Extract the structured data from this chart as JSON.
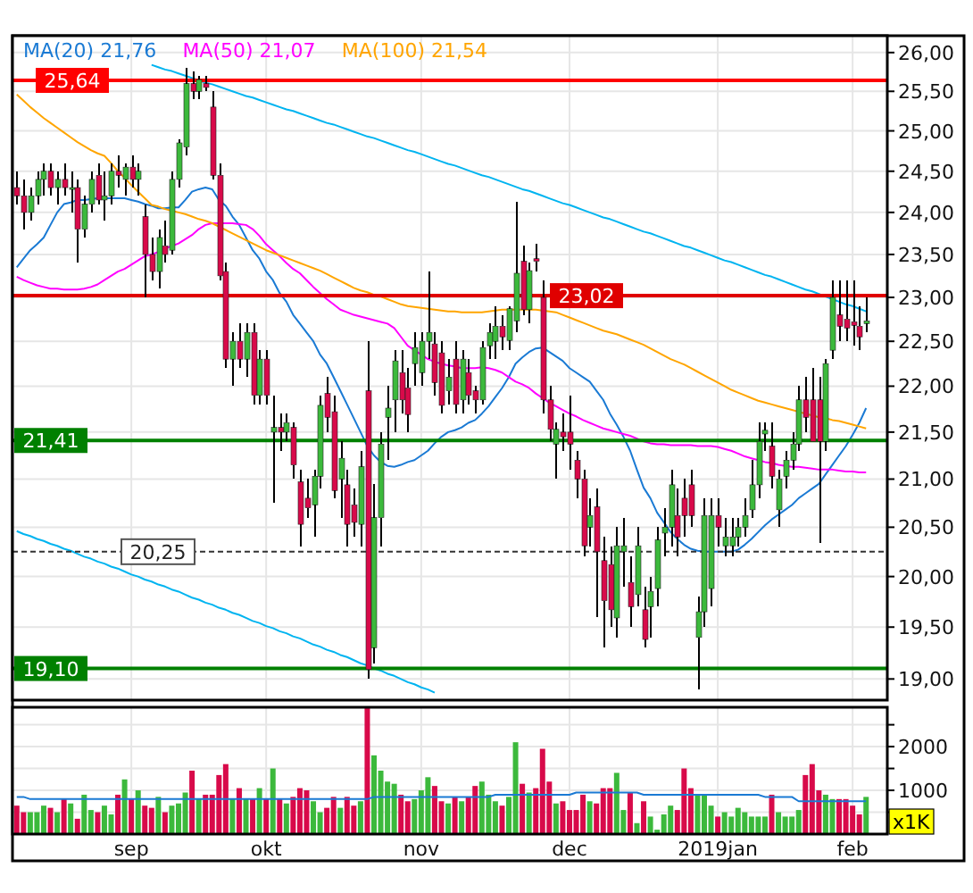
{
  "chart_data": [
    {
      "type": "candlestick",
      "log": true,
      "grid": true,
      "legend": "top left",
      "tick_labels": "y",
      "ylim": [
        18.8,
        26.22
      ],
      "yticks": [
        {
          "value": 19,
          "label": "19,00"
        },
        {
          "value": 19.5,
          "label": "19,50"
        },
        {
          "value": 20,
          "label": "20,00"
        },
        {
          "value": 20.5,
          "label": "20,50"
        },
        {
          "value": 21,
          "label": "21,00"
        },
        {
          "value": 21.5,
          "label": "21,50"
        },
        {
          "value": 22,
          "label": "22,00"
        },
        {
          "value": 22.5,
          "label": "22,50"
        },
        {
          "value": 23,
          "label": "23,00"
        },
        {
          "value": 23.5,
          "label": "23,50"
        },
        {
          "value": 24,
          "label": "24,00"
        },
        {
          "value": 24.5,
          "label": "24,50"
        },
        {
          "value": 25,
          "label": "25,00"
        },
        {
          "value": 25.5,
          "label": "25,50"
        },
        {
          "value": 26,
          "label": "26,00"
        }
      ],
      "categories": [
        null,
        null,
        null,
        null,
        null,
        null,
        null,
        null,
        null,
        null,
        null,
        null,
        null,
        null,
        null,
        null,
        null,
        null,
        null,
        null,
        null,
        null,
        null,
        null,
        null,
        null,
        null,
        null,
        null,
        null,
        null,
        null,
        null,
        null,
        null,
        null,
        null,
        null,
        null,
        null,
        null,
        null,
        null,
        null,
        null,
        null,
        null,
        null,
        null,
        null,
        null,
        null,
        null,
        null,
        null,
        null,
        null,
        null,
        null,
        null,
        null,
        null,
        null,
        null,
        null,
        null,
        null,
        null,
        null,
        null,
        null,
        null,
        null,
        null,
        null,
        null,
        null,
        null,
        null,
        null,
        null,
        null,
        null,
        null,
        null,
        null,
        null,
        null,
        null,
        null,
        null,
        null,
        null,
        null,
        null,
        null,
        null,
        null,
        null,
        null,
        null,
        null,
        null,
        null,
        null,
        null,
        null,
        null,
        null,
        null,
        null,
        null,
        null,
        null,
        null,
        null,
        null,
        null,
        null,
        null,
        null,
        null,
        null,
        null,
        null,
        null,
        null
      ],
      "ohlc": [
        [
          24.3,
          24.5,
          24.1,
          24.2
        ],
        [
          24.2,
          24.4,
          23.8,
          24.0
        ],
        [
          24.0,
          24.3,
          23.9,
          24.2
        ],
        [
          24.2,
          24.5,
          24.1,
          24.4
        ],
        [
          24.4,
          24.6,
          24.2,
          24.5
        ],
        [
          24.5,
          24.6,
          24.2,
          24.3
        ],
        [
          24.3,
          24.5,
          24.1,
          24.4
        ],
        [
          24.4,
          24.6,
          24.2,
          24.3
        ],
        [
          24.3,
          24.5,
          24.0,
          24.3
        ],
        [
          24.3,
          24.4,
          23.4,
          23.8
        ],
        [
          23.8,
          24.2,
          23.7,
          24.1
        ],
        [
          24.1,
          24.5,
          24.0,
          24.4
        ],
        [
          24.45,
          24.6,
          24.1,
          24.15
        ],
        [
          24.15,
          24.5,
          23.9,
          24.2
        ],
        [
          24.2,
          24.6,
          24.1,
          24.5
        ],
        [
          24.5,
          24.7,
          24.3,
          24.45
        ],
        [
          24.4,
          24.6,
          24.2,
          24.55
        ],
        [
          24.55,
          24.7,
          24.3,
          24.4
        ],
        [
          24.4,
          24.6,
          24.2,
          24.5
        ],
        [
          23.95,
          24.1,
          23.0,
          23.5
        ],
        [
          23.5,
          23.7,
          23.2,
          23.3
        ],
        [
          23.3,
          23.8,
          23.1,
          23.7
        ],
        [
          23.6,
          23.9,
          23.4,
          23.5
        ],
        [
          23.55,
          24.5,
          23.5,
          24.4
        ],
        [
          24.4,
          24.9,
          24.3,
          24.85
        ],
        [
          24.8,
          25.8,
          24.7,
          25.6
        ],
        [
          25.6,
          25.75,
          25.4,
          25.5
        ],
        [
          25.5,
          25.7,
          25.4,
          25.65
        ],
        [
          25.6,
          25.7,
          25.5,
          25.55
        ],
        [
          25.3,
          25.5,
          24.4,
          24.45
        ],
        [
          24.45,
          24.6,
          23.2,
          23.25
        ],
        [
          23.3,
          23.4,
          22.2,
          22.3
        ],
        [
          22.3,
          22.6,
          22.0,
          22.5
        ],
        [
          22.5,
          22.7,
          22.2,
          22.3
        ],
        [
          22.3,
          22.7,
          22.1,
          22.6
        ],
        [
          22.6,
          22.7,
          21.8,
          21.9
        ],
        [
          21.9,
          22.4,
          21.8,
          22.3
        ],
        [
          22.3,
          22.4,
          21.8,
          21.9
        ],
        [
          21.5,
          21.9,
          20.75,
          21.55
        ],
        [
          21.55,
          21.7,
          21.3,
          21.5
        ],
        [
          21.5,
          21.7,
          21.4,
          21.6
        ],
        [
          21.55,
          21.6,
          21.0,
          21.15
        ],
        [
          20.97,
          21.1,
          20.3,
          20.53
        ],
        [
          20.8,
          21.0,
          20.6,
          20.7
        ],
        [
          20.73,
          21.1,
          20.4,
          21.03
        ],
        [
          21.03,
          21.9,
          20.9,
          21.79
        ],
        [
          21.92,
          22.1,
          21.5,
          21.66
        ],
        [
          21.72,
          21.9,
          20.8,
          20.88
        ],
        [
          21.0,
          21.4,
          20.6,
          21.22
        ],
        [
          20.94,
          21.1,
          20.3,
          20.53
        ],
        [
          20.73,
          20.9,
          20.4,
          20.55
        ],
        [
          20.53,
          21.3,
          20.3,
          21.13
        ],
        [
          21.95,
          22.5,
          19.0,
          19.09
        ],
        [
          19.3,
          20.95,
          19.15,
          20.6
        ],
        [
          20.6,
          21.5,
          20.3,
          21.37
        ],
        [
          21.66,
          22.0,
          21.2,
          21.76
        ],
        [
          21.85,
          22.4,
          21.5,
          22.28
        ],
        [
          22.15,
          22.4,
          21.7,
          21.85
        ],
        [
          21.98,
          22.2,
          21.5,
          21.69
        ],
        [
          22.25,
          22.6,
          22.0,
          22.43
        ],
        [
          22.15,
          22.6,
          22.0,
          22.5
        ],
        [
          22.5,
          23.3,
          22.3,
          22.6
        ],
        [
          22.47,
          22.6,
          21.9,
          22.04
        ],
        [
          22.37,
          22.5,
          21.7,
          21.79
        ],
        [
          21.95,
          22.3,
          21.8,
          22.1
        ],
        [
          22.3,
          22.5,
          21.7,
          21.8
        ],
        [
          21.85,
          22.4,
          21.7,
          22.3
        ],
        [
          22.15,
          22.3,
          21.8,
          21.9
        ],
        [
          21.95,
          22.0,
          21.7,
          21.85
        ],
        [
          21.85,
          22.5,
          21.8,
          22.43
        ],
        [
          22.45,
          22.7,
          22.3,
          22.6
        ],
        [
          22.5,
          22.9,
          22.3,
          22.67
        ],
        [
          22.67,
          22.8,
          22.4,
          22.55
        ],
        [
          22.51,
          22.9,
          22.4,
          22.87
        ],
        [
          22.73,
          24.13,
          22.6,
          23.28
        ],
        [
          23.42,
          23.6,
          22.8,
          22.86
        ],
        [
          22.86,
          23.4,
          22.7,
          23.31
        ],
        [
          23.45,
          23.63,
          23.3,
          23.42
        ],
        [
          23.0,
          23.2,
          21.7,
          21.85
        ],
        [
          21.85,
          22.0,
          21.4,
          21.53
        ],
        [
          21.37,
          21.6,
          21.0,
          21.53
        ],
        [
          21.5,
          21.7,
          21.3,
          21.45
        ],
        [
          21.5,
          21.9,
          21.1,
          21.37
        ],
        [
          21.2,
          21.3,
          20.8,
          21.0
        ],
        [
          21.0,
          21.1,
          20.2,
          20.31
        ],
        [
          20.5,
          20.8,
          20.3,
          20.62
        ],
        [
          20.71,
          20.9,
          19.6,
          20.25
        ],
        [
          20.16,
          20.4,
          19.3,
          19.76
        ],
        [
          20.12,
          20.3,
          19.5,
          19.67
        ],
        [
          19.59,
          20.5,
          19.4,
          20.31
        ],
        [
          20.25,
          20.6,
          19.9,
          20.31
        ],
        [
          19.94,
          20.2,
          19.5,
          19.7
        ],
        [
          19.82,
          20.5,
          19.7,
          20.31
        ],
        [
          19.67,
          19.9,
          19.3,
          19.38
        ],
        [
          19.7,
          20.0,
          19.4,
          19.85
        ],
        [
          19.88,
          20.5,
          19.7,
          20.37
        ],
        [
          20.44,
          20.7,
          20.2,
          20.5
        ],
        [
          20.5,
          21.1,
          20.3,
          20.94
        ],
        [
          20.62,
          20.9,
          20.2,
          20.4
        ],
        [
          20.8,
          21.0,
          20.4,
          20.62
        ],
        [
          20.94,
          21.1,
          20.5,
          20.62
        ],
        [
          19.4,
          19.8,
          18.9,
          19.65
        ],
        [
          19.65,
          20.8,
          19.5,
          20.62
        ],
        [
          19.88,
          20.8,
          19.7,
          20.62
        ],
        [
          20.62,
          20.8,
          20.3,
          20.5
        ],
        [
          20.31,
          20.6,
          20.2,
          20.4
        ],
        [
          20.31,
          20.6,
          20.2,
          20.4
        ],
        [
          20.4,
          20.6,
          20.3,
          20.5
        ],
        [
          20.5,
          20.8,
          20.4,
          20.62
        ],
        [
          20.68,
          21.2,
          20.6,
          20.94
        ],
        [
          20.94,
          21.6,
          20.8,
          21.4
        ],
        [
          21.48,
          21.6,
          21.3,
          21.52
        ],
        [
          21.35,
          21.6,
          20.9,
          21.03
        ],
        [
          20.68,
          21.1,
          20.5,
          21.0
        ],
        [
          21.03,
          21.3,
          20.9,
          21.2
        ],
        [
          21.2,
          21.5,
          21.1,
          21.37
        ],
        [
          21.37,
          22.0,
          21.3,
          21.85
        ],
        [
          21.85,
          22.1,
          21.5,
          21.66
        ],
        [
          21.85,
          22.2,
          21.4,
          21.4
        ],
        [
          21.85,
          22.1,
          20.34,
          21.4
        ],
        [
          21.4,
          22.3,
          21.3,
          22.25
        ],
        [
          22.4,
          23.2,
          22.3,
          23.0
        ],
        [
          22.8,
          23.2,
          22.5,
          22.67
        ],
        [
          22.75,
          23.2,
          22.5,
          22.65
        ],
        [
          22.72,
          23.2,
          22.45,
          22.68
        ],
        [
          22.67,
          22.9,
          22.4,
          22.55
        ],
        [
          22.7,
          23.0,
          22.6,
          22.73
        ]
      ],
      "colors": [
        "#d80a4a",
        "#d80a4a",
        "#3cb93c",
        "#3cb93c",
        "#3cb93c",
        "#d80a4a",
        "#3cb93c",
        "#d80a4a",
        "#3cb93c",
        "#d80a4a",
        "#3cb93c",
        "#3cb93c",
        "#d80a4a",
        "#3cb93c",
        "#3cb93c",
        "#d80a4a",
        "#3cb93c",
        "#d80a4a",
        "#3cb93c",
        "#d80a4a",
        "#d80a4a",
        "#3cb93c",
        "#d80a4a",
        "#3cb93c",
        "#3cb93c",
        "#3cb93c",
        "#d80a4a",
        "#3cb93c",
        "#d80a4a",
        "#d80a4a",
        "#d80a4a",
        "#d80a4a",
        "#3cb93c",
        "#d80a4a",
        "#3cb93c",
        "#d80a4a",
        "#3cb93c",
        "#d80a4a",
        "#3cb93c",
        "#d80a4a",
        "#3cb93c",
        "#d80a4a",
        "#d80a4a",
        "#d80a4a",
        "#3cb93c",
        "#3cb93c",
        "#d80a4a",
        "#d80a4a",
        "#3cb93c",
        "#d80a4a",
        "#d80a4a",
        "#3cb93c",
        "#d80a4a",
        "#3cb93c",
        "#3cb93c",
        "#3cb93c",
        "#3cb93c",
        "#d80a4a",
        "#d80a4a",
        "#3cb93c",
        "#3cb93c",
        "#3cb93c",
        "#d80a4a",
        "#d80a4a",
        "#3cb93c",
        "#d80a4a",
        "#3cb93c",
        "#d80a4a",
        "#d80a4a",
        "#3cb93c",
        "#3cb93c",
        "#3cb93c",
        "#d80a4a",
        "#3cb93c",
        "#3cb93c",
        "#d80a4a",
        "#3cb93c",
        "#d80a4a",
        "#d80a4a",
        "#d80a4a",
        "#3cb93c",
        "#d80a4a",
        "#d80a4a",
        "#d80a4a",
        "#d80a4a",
        "#3cb93c",
        "#d80a4a",
        "#d80a4a",
        "#d80a4a",
        "#3cb93c",
        "#3cb93c",
        "#d80a4a",
        "#3cb93c",
        "#d80a4a",
        "#3cb93c",
        "#3cb93c",
        "#3cb93c",
        "#3cb93c",
        "#d80a4a",
        "#d80a4a",
        "#d80a4a",
        "#3cb93c",
        "#3cb93c",
        "#3cb93c",
        "#d80a4a",
        "#3cb93c",
        "#3cb93c",
        "#3cb93c",
        "#3cb93c",
        "#3cb93c",
        "#3cb93c",
        "#3cb93c",
        "#d80a4a",
        "#3cb93c",
        "#3cb93c",
        "#3cb93c",
        "#3cb93c",
        "#d80a4a",
        "#d80a4a",
        "#d80a4a",
        "#3cb93c",
        "#3cb93c",
        "#d80a4a",
        "#d80a4a",
        "#d80a4a",
        "#d80a4a",
        "#3cb93c"
      ],
      "series": [
        {
          "type": "line",
          "name": "MA(20) 21,76",
          "color": "#1a7ad4",
          "values": [
            23.35,
            23.45,
            23.55,
            23.62,
            23.7,
            23.85,
            24.0,
            24.1,
            24.12,
            24.15,
            24.15,
            24.16,
            24.17,
            24.17,
            24.17,
            24.17,
            24.17,
            24.15,
            24.13,
            24.1,
            24.08,
            24.05,
            24.05,
            24.06,
            24.06,
            24.15,
            24.25,
            24.28,
            24.3,
            24.28,
            24.15,
            24.08,
            23.95,
            23.85,
            23.7,
            23.55,
            23.45,
            23.3,
            23.2,
            23.05,
            22.95,
            22.8,
            22.7,
            22.6,
            22.5,
            22.35,
            22.25,
            22.1,
            21.95,
            21.8,
            21.65,
            21.5,
            21.35,
            21.25,
            21.18,
            21.14,
            21.13,
            21.15,
            21.18,
            21.2,
            21.25,
            21.3,
            21.38,
            21.45,
            21.5,
            21.52,
            21.55,
            21.6,
            21.63,
            21.7,
            21.78,
            21.88,
            21.98,
            22.1,
            22.25,
            22.32,
            22.38,
            22.42,
            22.43,
            22.38,
            22.33,
            22.28,
            22.2,
            22.15,
            22.1,
            22.05,
            21.95,
            21.85,
            21.7,
            21.58,
            21.45,
            21.3,
            21.1,
            20.91,
            20.8,
            20.65,
            20.55,
            20.45,
            20.38,
            20.32,
            20.28,
            20.26,
            20.25,
            20.25,
            20.25,
            20.25,
            20.25,
            20.27,
            20.32,
            20.38,
            20.45,
            20.52,
            20.58,
            20.63,
            20.68,
            20.73,
            20.8,
            20.85,
            20.9,
            20.95,
            21.05,
            21.15,
            21.25,
            21.35,
            21.47,
            21.6,
            21.76
          ]
        },
        {
          "type": "line",
          "name": "MA(50) 21,07",
          "color": "#ff00ff",
          "values": [
            23.24,
            23.2,
            23.17,
            23.14,
            23.12,
            23.1,
            23.1,
            23.09,
            23.09,
            23.09,
            23.1,
            23.12,
            23.15,
            23.2,
            23.25,
            23.3,
            23.33,
            23.38,
            23.43,
            23.48,
            23.5,
            23.53,
            23.57,
            23.6,
            23.63,
            23.68,
            23.73,
            23.8,
            23.85,
            23.87,
            23.87,
            23.87,
            23.87,
            23.86,
            23.85,
            23.8,
            23.72,
            23.62,
            23.55,
            23.48,
            23.4,
            23.33,
            23.28,
            23.2,
            23.12,
            23.05,
            22.98,
            22.92,
            22.86,
            22.83,
            22.8,
            22.78,
            22.76,
            22.74,
            22.72,
            22.7,
            22.65,
            22.55,
            22.45,
            22.4,
            22.35,
            22.3,
            22.27,
            22.25,
            22.23,
            22.22,
            22.2,
            22.2,
            22.2,
            22.21,
            22.2,
            22.18,
            22.15,
            22.1,
            22.05,
            22.02,
            21.98,
            21.92,
            21.87,
            21.82,
            21.78,
            21.74,
            21.7,
            21.67,
            21.63,
            21.6,
            21.57,
            21.54,
            21.52,
            21.5,
            21.48,
            21.46,
            21.43,
            21.4,
            21.38,
            21.37,
            21.37,
            21.36,
            21.36,
            21.36,
            21.36,
            21.35,
            21.35,
            21.35,
            21.34,
            21.32,
            21.3,
            21.27,
            21.24,
            21.22,
            21.2,
            21.18,
            21.17,
            21.15,
            21.14,
            21.13,
            21.13,
            21.12,
            21.11,
            21.1,
            21.1,
            21.1,
            21.09,
            21.08,
            21.08,
            21.07,
            21.07
          ]
        },
        {
          "type": "line",
          "name": "MA(100) 21,54",
          "color": "#ffa500",
          "values": [
            25.46,
            25.38,
            25.3,
            25.23,
            25.16,
            25.1,
            25.04,
            24.98,
            24.92,
            24.86,
            24.81,
            24.76,
            24.72,
            24.69,
            24.6,
            24.5,
            24.42,
            24.33,
            24.25,
            24.17,
            24.09,
            24.07,
            24.04,
            24.02,
            24.0,
            23.98,
            23.95,
            23.92,
            23.9,
            23.87,
            23.83,
            23.79,
            23.75,
            23.71,
            23.67,
            23.63,
            23.59,
            23.55,
            23.52,
            23.49,
            23.46,
            23.43,
            23.4,
            23.37,
            23.34,
            23.31,
            23.27,
            23.23,
            23.19,
            23.15,
            23.11,
            23.08,
            23.06,
            23.03,
            23.01,
            22.98,
            22.95,
            22.92,
            22.9,
            22.89,
            22.88,
            22.87,
            22.86,
            22.85,
            22.84,
            22.84,
            22.83,
            22.83,
            22.83,
            22.83,
            22.84,
            22.85,
            22.86,
            22.86,
            22.86,
            22.86,
            22.86,
            22.86,
            22.85,
            22.84,
            22.83,
            22.8,
            22.77,
            22.74,
            22.71,
            22.68,
            22.65,
            22.62,
            22.6,
            22.58,
            22.55,
            22.52,
            22.49,
            22.46,
            22.42,
            22.38,
            22.34,
            22.3,
            22.27,
            22.24,
            22.2,
            22.16,
            22.12,
            22.08,
            22.04,
            22.0,
            21.96,
            21.93,
            21.9,
            21.87,
            21.84,
            21.82,
            21.8,
            21.78,
            21.76,
            21.74,
            21.72,
            21.7,
            21.68,
            21.66,
            21.65,
            21.63,
            21.62,
            21.6,
            21.58,
            21.56,
            21.54
          ]
        },
        {
          "type": "line",
          "color": "#00b4f0",
          "values": [
            null,
            null,
            null,
            null,
            null,
            null,
            null,
            null,
            null,
            null,
            null,
            null,
            null,
            null,
            null,
            null,
            null,
            null,
            null,
            null,
            25.84,
            25.81,
            25.78,
            25.76,
            25.73,
            25.7,
            25.67,
            25.64,
            25.61,
            25.59,
            25.56,
            25.53,
            25.5,
            25.47,
            25.44,
            25.42,
            25.39,
            25.36,
            25.33,
            25.3,
            25.27,
            25.25,
            25.22,
            25.19,
            25.16,
            25.13,
            25.1,
            25.08,
            25.05,
            25.02,
            24.99,
            24.96,
            24.93,
            24.91,
            24.88,
            24.85,
            24.82,
            24.79,
            24.76,
            24.74,
            24.71,
            24.68,
            24.65,
            24.62,
            24.59,
            24.57,
            24.54,
            24.51,
            24.48,
            24.45,
            24.43,
            24.4,
            24.37,
            24.34,
            24.31,
            24.28,
            24.26,
            24.23,
            24.2,
            24.17,
            24.14,
            24.11,
            24.09,
            24.06,
            24.03,
            24.0,
            23.97,
            23.94,
            23.92,
            23.89,
            23.86,
            23.83,
            23.8,
            23.77,
            23.75,
            23.72,
            23.69,
            23.66,
            23.63,
            23.6,
            23.58,
            23.55,
            23.52,
            23.49,
            23.46,
            23.43,
            23.41,
            23.38,
            23.35,
            23.32,
            23.29,
            23.26,
            23.24,
            23.21,
            23.18,
            23.15,
            23.12,
            23.09,
            23.07,
            23.04,
            23.01,
            22.98,
            22.95,
            22.92,
            22.9,
            22.87,
            22.84
          ]
        },
        {
          "type": "line",
          "color": "#00b4f0",
          "values": [
            20.46,
            20.43,
            20.41,
            20.38,
            20.36,
            20.33,
            20.31,
            20.28,
            20.26,
            20.23,
            20.2,
            20.18,
            20.15,
            20.13,
            20.1,
            20.08,
            20.05,
            20.02,
            20.0,
            19.97,
            19.95,
            19.92,
            19.9,
            19.87,
            19.85,
            19.82,
            19.79,
            19.77,
            19.74,
            19.72,
            19.69,
            19.67,
            19.64,
            19.62,
            19.59,
            19.56,
            19.54,
            19.51,
            19.49,
            19.46,
            19.44,
            19.41,
            19.39,
            19.36,
            19.33,
            19.31,
            19.28,
            19.26,
            19.23,
            19.21,
            19.18,
            19.15,
            19.13,
            19.1,
            19.08,
            19.05,
            19.03,
            19.0,
            18.97,
            18.95,
            18.92,
            18.9,
            18.87,
            null,
            null,
            null,
            null,
            null,
            null,
            null,
            null,
            null,
            null,
            null,
            null,
            null,
            null,
            null,
            null,
            null,
            null,
            null,
            null,
            null,
            null,
            null,
            null,
            null,
            null,
            null,
            null,
            null,
            null,
            null,
            null,
            null,
            null,
            null,
            null,
            null,
            null,
            null,
            null,
            null,
            null,
            null,
            null,
            null,
            null,
            null,
            null,
            null,
            null,
            null,
            null,
            null,
            null,
            null,
            null,
            null,
            null,
            null,
            null,
            null,
            null,
            null,
            null
          ]
        }
      ],
      "ref_lines": [
        {
          "axis": "y",
          "value": 25.64,
          "label": "25,64",
          "color": "#ff0000",
          "line_style": "solid"
        },
        {
          "axis": "y",
          "value": 23.02,
          "label": "23,02",
          "color": "#e00000",
          "line_style": "solid"
        },
        {
          "axis": "y",
          "value": 21.41,
          "label": "21,41",
          "color": "#008000",
          "line_style": "solid"
        },
        {
          "axis": "y",
          "value": 20.25,
          "label": "20,25",
          "color": "#333333",
          "line_style": "dashed"
        },
        {
          "axis": "y",
          "value": 19.1,
          "label": "19,10",
          "color": "#008000",
          "line_style": "solid"
        }
      ]
    },
    {
      "type": "bar",
      "grid": true,
      "ylim": [
        0,
        2900
      ],
      "yticks": [
        {
          "value": 500,
          "label": null
        },
        1000,
        {
          "value": 1500,
          "label": null
        },
        2000,
        {
          "value": 2500,
          "label": null
        }
      ],
      "annotations": [
        "x1K"
      ],
      "categories": [
        null,
        null,
        null,
        null,
        null,
        null,
        null,
        null,
        null,
        null,
        null,
        null,
        null,
        null,
        null,
        null,
        null,
        "sep",
        null,
        null,
        null,
        null,
        null,
        null,
        null,
        null,
        null,
        null,
        null,
        null,
        null,
        null,
        null,
        null,
        null,
        null,
        null,
        "okt",
        null,
        null,
        null,
        null,
        null,
        null,
        null,
        null,
        null,
        null,
        null,
        null,
        null,
        null,
        null,
        null,
        null,
        null,
        null,
        null,
        null,
        null,
        "nov",
        null,
        null,
        null,
        null,
        null,
        null,
        null,
        null,
        null,
        null,
        null,
        null,
        null,
        null,
        null,
        null,
        null,
        null,
        null,
        null,
        null,
        "dec",
        null,
        null,
        null,
        null,
        null,
        null,
        null,
        null,
        null,
        null,
        null,
        null,
        null,
        null,
        null,
        null,
        null,
        null,
        null,
        null,
        null,
        "2019jan",
        null,
        null,
        null,
        null,
        null,
        null,
        null,
        null,
        null,
        null,
        null,
        null,
        null,
        null,
        null,
        null,
        null,
        null,
        null,
        "feb",
        null,
        null
      ],
      "series": [
        {
          "type": "bar",
          "values": [
            650,
            500,
            500,
            500,
            650,
            600,
            500,
            800,
            700,
            350,
            900,
            550,
            500,
            650,
            450,
            900,
            1250,
            800,
            1000,
            650,
            600,
            850,
            500,
            650,
            700,
            950,
            1450,
            800,
            900,
            900,
            1350,
            1600,
            800,
            1050,
            800,
            800,
            1050,
            800,
            1500,
            800,
            700,
            850,
            1050,
            1000,
            750,
            500,
            600,
            850,
            600,
            850,
            650,
            750,
            2900,
            1800,
            1450,
            1200,
            1150,
            900,
            750,
            800,
            1000,
            1300,
            1100,
            750,
            700,
            850,
            750,
            850,
            1100,
            1200,
            900,
            750,
            650,
            850,
            2100,
            1150,
            950,
            1050,
            1950,
            1200,
            700,
            750,
            550,
            550,
            900,
            750,
            700,
            1050,
            1050,
            1400,
            550,
            950,
            250,
            750,
            400,
            100,
            450,
            650,
            550,
            1500,
            1050,
            900,
            900,
            650,
            400,
            500,
            400,
            600,
            500,
            400,
            400,
            400,
            900,
            500,
            400,
            400,
            550,
            1350,
            1600,
            1000,
            900,
            800,
            800,
            800,
            650,
            450,
            850
          ],
          "colors": [
            "#d80a4a",
            "#d80a4a",
            "#3cb93c",
            "#3cb93c",
            "#3cb93c",
            "#d80a4a",
            "#3cb93c",
            "#d80a4a",
            "#3cb93c",
            "#d80a4a",
            "#3cb93c",
            "#3cb93c",
            "#d80a4a",
            "#3cb93c",
            "#3cb93c",
            "#d80a4a",
            "#3cb93c",
            "#d80a4a",
            "#3cb93c",
            "#d80a4a",
            "#d80a4a",
            "#3cb93c",
            "#d80a4a",
            "#3cb93c",
            "#3cb93c",
            "#3cb93c",
            "#d80a4a",
            "#3cb93c",
            "#d80a4a",
            "#d80a4a",
            "#d80a4a",
            "#d80a4a",
            "#3cb93c",
            "#d80a4a",
            "#3cb93c",
            "#d80a4a",
            "#3cb93c",
            "#d80a4a",
            "#3cb93c",
            "#d80a4a",
            "#3cb93c",
            "#d80a4a",
            "#d80a4a",
            "#d80a4a",
            "#3cb93c",
            "#3cb93c",
            "#d80a4a",
            "#d80a4a",
            "#3cb93c",
            "#d80a4a",
            "#d80a4a",
            "#3cb93c",
            "#d80a4a",
            "#3cb93c",
            "#3cb93c",
            "#3cb93c",
            "#3cb93c",
            "#d80a4a",
            "#d80a4a",
            "#3cb93c",
            "#3cb93c",
            "#3cb93c",
            "#d80a4a",
            "#d80a4a",
            "#3cb93c",
            "#d80a4a",
            "#3cb93c",
            "#d80a4a",
            "#d80a4a",
            "#3cb93c",
            "#3cb93c",
            "#3cb93c",
            "#d80a4a",
            "#3cb93c",
            "#3cb93c",
            "#d80a4a",
            "#3cb93c",
            "#d80a4a",
            "#d80a4a",
            "#d80a4a",
            "#3cb93c",
            "#d80a4a",
            "#d80a4a",
            "#d80a4a",
            "#d80a4a",
            "#3cb93c",
            "#d80a4a",
            "#d80a4a",
            "#d80a4a",
            "#3cb93c",
            "#3cb93c",
            "#d80a4a",
            "#3cb93c",
            "#d80a4a",
            "#3cb93c",
            "#3cb93c",
            "#3cb93c",
            "#3cb93c",
            "#d80a4a",
            "#d80a4a",
            "#d80a4a",
            "#3cb93c",
            "#3cb93c",
            "#3cb93c",
            "#d80a4a",
            "#3cb93c",
            "#3cb93c",
            "#3cb93c",
            "#3cb93c",
            "#3cb93c",
            "#3cb93c",
            "#3cb93c",
            "#d80a4a",
            "#3cb93c",
            "#3cb93c",
            "#3cb93c",
            "#3cb93c",
            "#d80a4a",
            "#d80a4a",
            "#d80a4a",
            "#3cb93c",
            "#3cb93c",
            "#d80a4a",
            "#d80a4a",
            "#d80a4a",
            "#d80a4a",
            "#3cb93c"
          ]
        },
        {
          "type": "line",
          "color": "#1a7ad4",
          "values": [
            850,
            850,
            800,
            800,
            800,
            800,
            800,
            800,
            800,
            800,
            800,
            800,
            800,
            800,
            800,
            800,
            800,
            800,
            800,
            800,
            800,
            800,
            800,
            800,
            800,
            800,
            800,
            800,
            800,
            800,
            800,
            800,
            800,
            800,
            800,
            800,
            800,
            800,
            800,
            800,
            800,
            800,
            800,
            800,
            800,
            800,
            800,
            800,
            800,
            800,
            800,
            800,
            800,
            850,
            850,
            850,
            850,
            850,
            850,
            850,
            850,
            850,
            850,
            850,
            850,
            850,
            850,
            850,
            850,
            850,
            850,
            900,
            900,
            900,
            900,
            900,
            900,
            900,
            900,
            900,
            900,
            900,
            900,
            950,
            950,
            950,
            950,
            950,
            950,
            950,
            950,
            950,
            950,
            900,
            900,
            900,
            900,
            900,
            900,
            900,
            900,
            900,
            900,
            900,
            900,
            900,
            900,
            900,
            900,
            900,
            900,
            850,
            850,
            850,
            850,
            850,
            750,
            750,
            750,
            750,
            750,
            750,
            750,
            750,
            750,
            750,
            750
          ]
        }
      ]
    }
  ]
}
